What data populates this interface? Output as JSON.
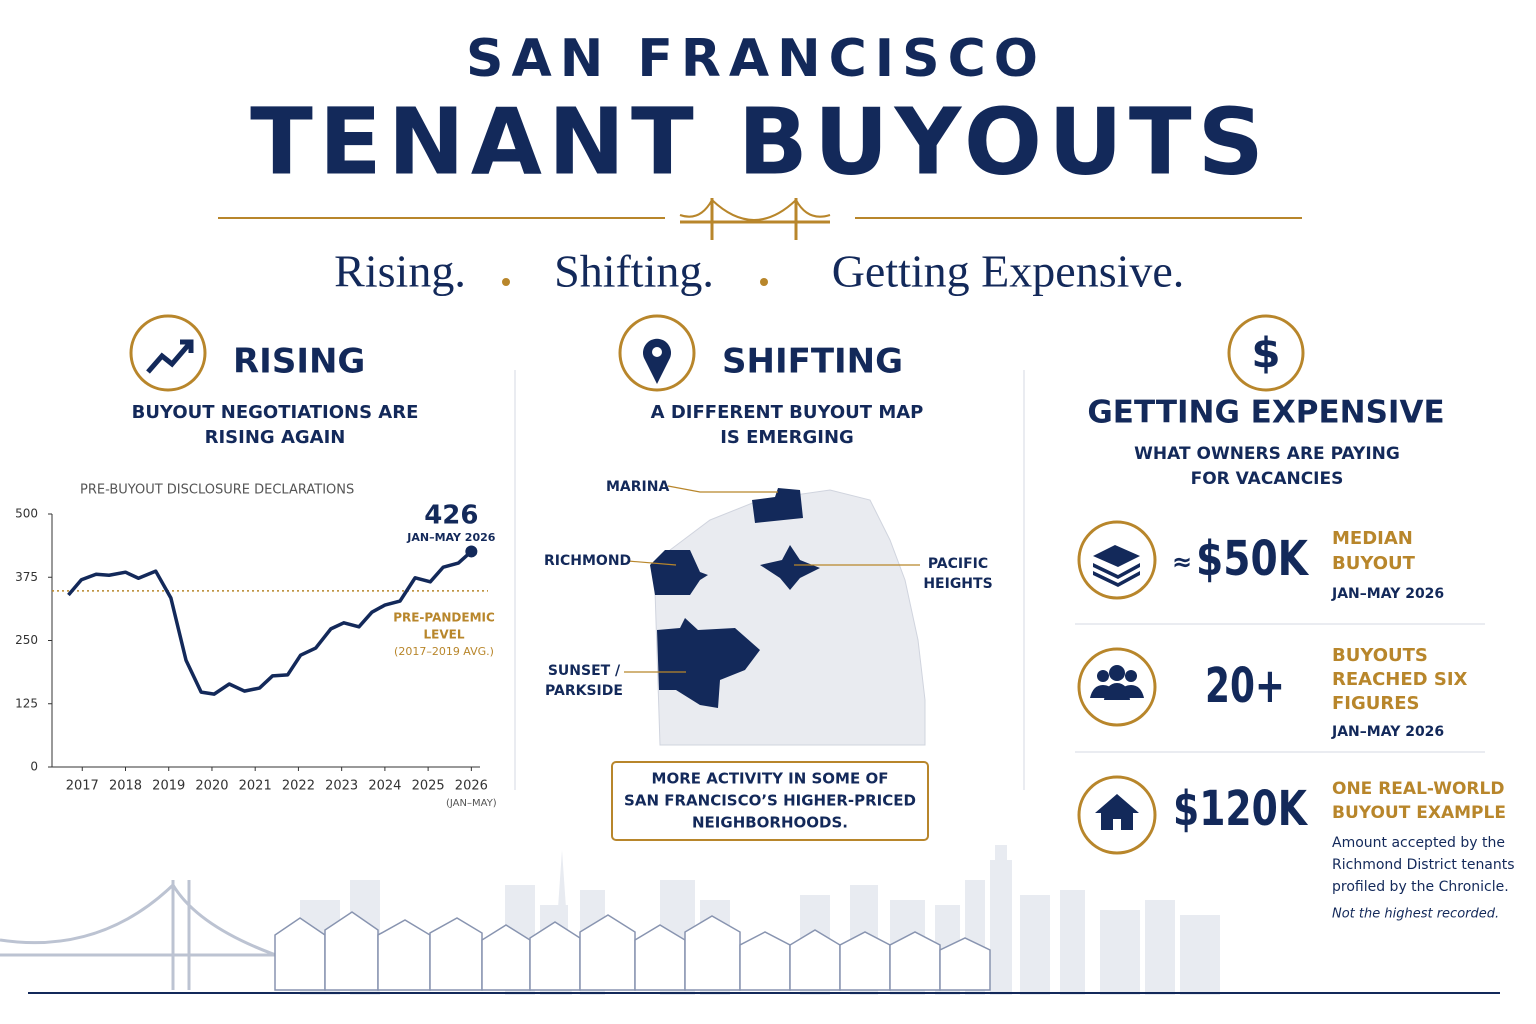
{
  "header": {
    "title_line1": "SAN FRANCISCO",
    "title_line2": "TENANT BUYOUTS",
    "tagline": [
      "Rising.",
      "Shifting.",
      "Getting Expensive."
    ]
  },
  "rising": {
    "heading": "RISING",
    "subheading": [
      "BUYOUT NEGOTIATIONS ARE",
      "RISING AGAIN"
    ]
  },
  "chart_data": {
    "type": "line",
    "title": "PRE-BUYOUT DISCLOSURE DECLARATIONS",
    "x": [
      2016.68,
      2016.98,
      2017.32,
      2017.62,
      2018.0,
      2018.3,
      2018.7,
      2019.05,
      2019.4,
      2019.75,
      2020.05,
      2020.4,
      2020.75,
      2021.1,
      2021.4,
      2021.75,
      2022.05,
      2022.4,
      2022.75,
      2023.05,
      2023.4,
      2023.7,
      2024.0,
      2024.35,
      2024.7,
      2025.05,
      2025.35,
      2025.7,
      2026.0
    ],
    "series": [
      {
        "name": "Pre-buyout disclosure declarations",
        "color": "#13295a",
        "values": [
          340,
          370,
          381,
          379,
          385,
          373,
          387,
          334,
          211,
          148,
          144,
          164,
          150,
          156,
          180,
          182,
          221,
          235,
          273,
          285,
          277,
          306,
          320,
          328,
          374,
          366,
          395,
          403,
          426
        ]
      }
    ],
    "end_label_note": "JAN–MAY 2026",
    "reference_line": {
      "value": 348,
      "label": [
        "PRE-PANDEMIC",
        "LEVEL"
      ],
      "sublabel": "(2017–2019 AVG.)",
      "color": "#b8862b"
    },
    "xlim": [
      2016.3,
      2026.2
    ],
    "xticks": [
      2017,
      2018,
      2019,
      2020,
      2021,
      2022,
      2023,
      2024,
      2025,
      2026
    ],
    "x_note": "(JAN–MAY)",
    "ylim": [
      0,
      500
    ],
    "yticks": [
      0,
      125,
      250,
      375,
      500
    ],
    "grid": false
  },
  "shifting": {
    "heading": "SHIFTING",
    "subheading": [
      "A DIFFERENT BUYOUT MAP",
      "IS EMERGING"
    ],
    "neighborhoods": [
      "MARINA",
      "RICHMOND",
      [
        "PACIFIC",
        "HEIGHTS"
      ],
      [
        "SUNSET /",
        "PARKSIDE"
      ]
    ],
    "callout": [
      "MORE ACTIVITY IN SOME OF",
      "SAN FRANCISCO’S HIGHER-PRICED",
      "NEIGHBORHOODS."
    ]
  },
  "expensive": {
    "icon_text": "$",
    "heading": "GETTING EXPENSIVE",
    "subheading": [
      "WHAT OWNERS ARE PAYING",
      "FOR VACANCIES"
    ],
    "stats": [
      {
        "prefix": "≈",
        "value": "$50K",
        "label": [
          "MEDIAN",
          "BUYOUT"
        ],
        "note": "JAN–MAY 2026"
      },
      {
        "value": "20+",
        "label": [
          "BUYOUTS",
          "REACHED SIX",
          "FIGURES"
        ],
        "note": "JAN–MAY 2026"
      },
      {
        "value": "$120K",
        "label": [
          "ONE REAL-WORLD",
          "BUYOUT EXAMPLE"
        ],
        "description": [
          "Amount accepted by the",
          "Richmond District tenants",
          "profiled by the Chronicle."
        ],
        "note": "Not the highest recorded."
      }
    ]
  }
}
